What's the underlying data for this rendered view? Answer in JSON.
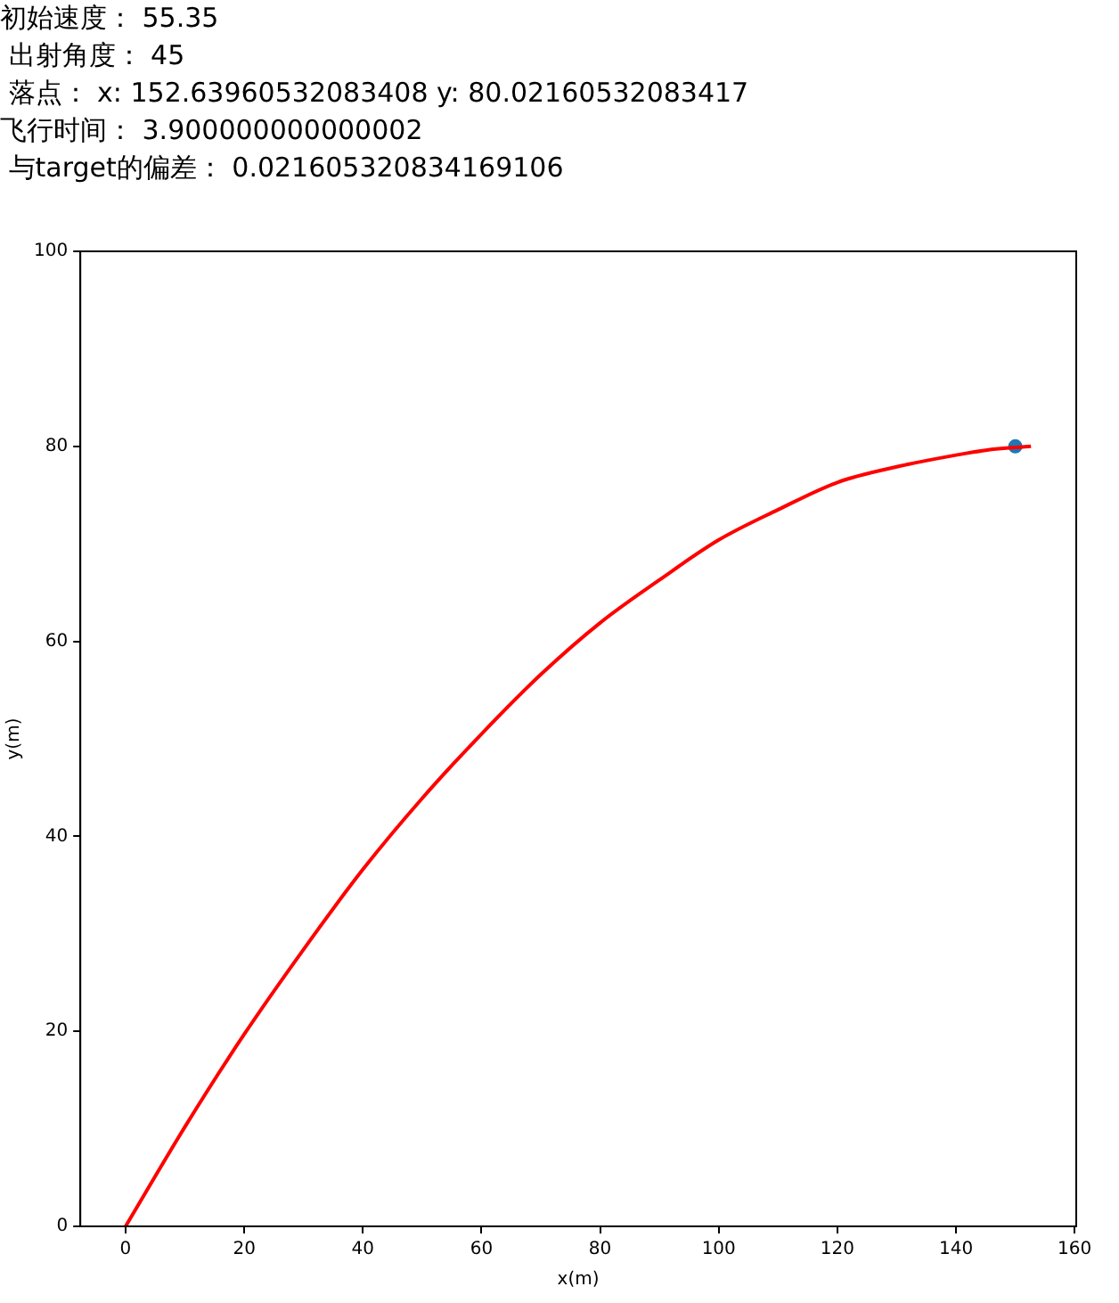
{
  "chart_data": {
    "type": "line",
    "xlabel": "x(m)",
    "ylabel": "y(m)",
    "annotations": [
      "初始速度： 55.35",
      " 出射角度： 45",
      " 落点： x: 152.63960532083408 y: 80.02160532083417",
      "飞行时间： 3.900000000000002",
      " 与target的偏差： 0.021605320834169106"
    ],
    "series": [
      {
        "color": "#ff0000",
        "x": [
          0,
          10,
          20,
          30,
          40,
          50,
          60,
          70,
          80,
          90,
          100,
          110,
          120,
          130,
          140,
          145,
          152.64
        ],
        "values": [
          0,
          10.2,
          19.7,
          28.4,
          36.6,
          43.9,
          50.5,
          56.6,
          61.9,
          66.3,
          70.4,
          73.5,
          76.3,
          77.9,
          79.1,
          79.6,
          80
        ]
      },
      {
        "type": "scatter",
        "color": "#1f77b4",
        "x": [
          150
        ],
        "values": [
          80
        ]
      }
    ],
    "xlim": [
      -7.63,
      160.27
    ],
    "xticks": [
      0,
      20,
      40,
      60,
      80,
      100,
      120,
      140,
      160
    ],
    "ylim": [
      0,
      100
    ],
    "yticks": [
      0,
      20,
      40,
      60,
      80,
      100
    ],
    "grid": false,
    "legend": false
  }
}
